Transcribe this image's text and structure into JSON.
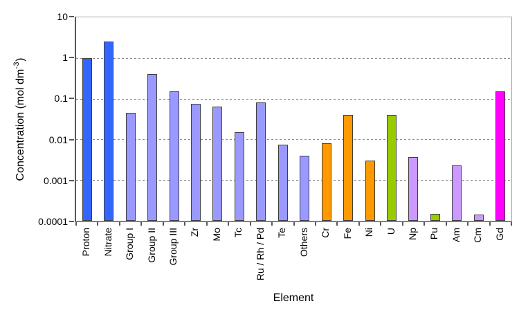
{
  "chart_data": {
    "type": "bar",
    "title": "",
    "xlabel": "Element",
    "ylabel": "Concentration (mol dm -3)",
    "ylabel_parts": {
      "main": "Concentration (mol dm",
      "sup": "-3",
      "close": ")"
    },
    "y_scale": "log",
    "ylim": [
      0.0001,
      10
    ],
    "y_ticks": [
      "10",
      "1",
      "0.1",
      "0.01",
      "0.001",
      "0.0001"
    ],
    "grid": "dashed horizontal gridlines at each decade (1, 0.1, 0.01, 0.001)",
    "legend": "none",
    "categories": [
      "Proton",
      "Nitrate",
      "Group I",
      "Group II",
      "Group III",
      "Zr",
      "Mo",
      "Tc",
      "Ru / Rh / Pd",
      "Te",
      "Others",
      "Cr",
      "Fe",
      "Ni",
      "U",
      "Np",
      "Pu",
      "Am",
      "Cm",
      "Gd"
    ],
    "values": [
      1.0,
      2.5,
      0.045,
      0.4,
      0.15,
      0.075,
      0.065,
      0.015,
      0.08,
      0.0075,
      0.004,
      0.008,
      0.04,
      0.003,
      0.04,
      0.0037,
      0.00015,
      0.0023,
      0.00014,
      0.15
    ],
    "bar_colors": [
      "#3366FF",
      "#3366FF",
      "#9999FF",
      "#9999FF",
      "#9999FF",
      "#9999FF",
      "#9999FF",
      "#9999FF",
      "#9999FF",
      "#9999FF",
      "#9999FF",
      "#FF9900",
      "#FF9900",
      "#FF9900",
      "#99CC00",
      "#CC99FF",
      "#99CC00",
      "#CC99FF",
      "#CC99FF",
      "#FF00FF"
    ],
    "palette": {
      "blue": "#3366FF",
      "periwinkle": "#9999FF",
      "orange": "#FF9900",
      "green": "#99CC00",
      "lavender": "#CC99FF",
      "magenta": "#FF00FF"
    },
    "axis_color": "#595959",
    "plot_border_color": "#a6a6a6",
    "gridline_color": "#8c8c8c",
    "bar_border_color": "#3f3f3f"
  }
}
